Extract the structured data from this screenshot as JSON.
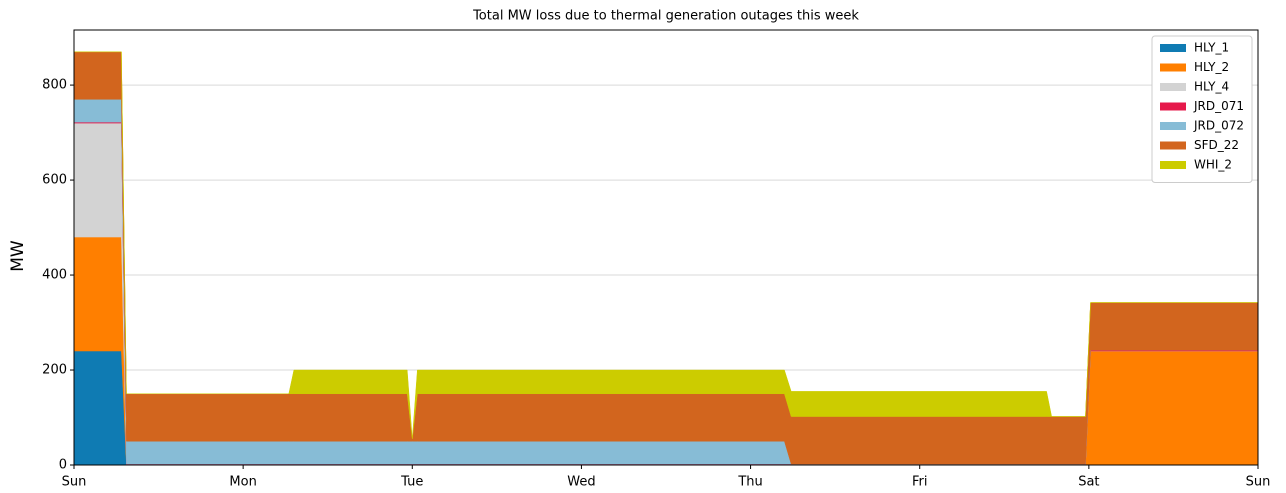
{
  "chart_data": {
    "type": "stacked_area",
    "title": "Total MW loss due to thermal generation outages this week",
    "y_label": "MW",
    "x": [
      0,
      0.28,
      0.31,
      1.27,
      1.3,
      1.97,
      2.0,
      2.03,
      4.2,
      4.24,
      5.75,
      5.78,
      5.98,
      6.01,
      7
    ],
    "xlim": [
      0,
      7
    ],
    "xticks": [
      {
        "value": 0,
        "label": "Sun"
      },
      {
        "value": 1,
        "label": "Mon"
      },
      {
        "value": 2,
        "label": "Tue"
      },
      {
        "value": 3,
        "label": "Wed"
      },
      {
        "value": 4,
        "label": "Thu"
      },
      {
        "value": 5,
        "label": "Fri"
      },
      {
        "value": 6,
        "label": "Sat"
      },
      {
        "value": 7,
        "label": "Sun"
      }
    ],
    "ylim": [
      0,
      916
    ],
    "yticks": [
      0,
      200,
      400,
      600,
      800
    ],
    "grid": true,
    "legend": "upper-right",
    "series": [
      {
        "name": "HLY_1",
        "color": "#0f7bb3",
        "values": [
          240,
          240,
          0,
          0,
          0,
          0,
          0,
          0,
          0,
          0,
          0,
          0,
          0,
          0,
          0
        ]
      },
      {
        "name": "HLY_2",
        "color": "#ff7f00",
        "values": [
          240,
          240,
          0,
          0,
          0,
          0,
          0,
          0,
          0,
          0,
          0,
          0,
          0,
          240,
          240
        ]
      },
      {
        "name": "HLY_4",
        "color": "#d3d3d3",
        "values": [
          240,
          240,
          0,
          0,
          0,
          0,
          0,
          0,
          0,
          0,
          0,
          0,
          0,
          0,
          0
        ]
      },
      {
        "name": "JRD_071",
        "color": "#e6194b",
        "values": [
          2,
          2,
          2,
          2,
          2,
          2,
          2,
          2,
          2,
          2,
          2,
          2,
          2,
          2,
          2
        ]
      },
      {
        "name": "JRD_072",
        "color": "#87bcd6",
        "values": [
          48,
          48,
          48,
          48,
          48,
          48,
          48,
          48,
          48,
          0,
          0,
          0,
          0,
          0,
          0
        ]
      },
      {
        "name": "SFD_22",
        "color": "#d2651e",
        "values": [
          100,
          100,
          100,
          100,
          100,
          100,
          5,
          100,
          100,
          100,
          100,
          100,
          100,
          100,
          100
        ]
      },
      {
        "name": "WHI_2",
        "color": "#cccc00",
        "values": [
          0,
          0,
          0,
          0,
          50,
          50,
          0,
          50,
          50,
          53,
          53,
          0,
          0,
          0,
          0
        ]
      }
    ]
  }
}
